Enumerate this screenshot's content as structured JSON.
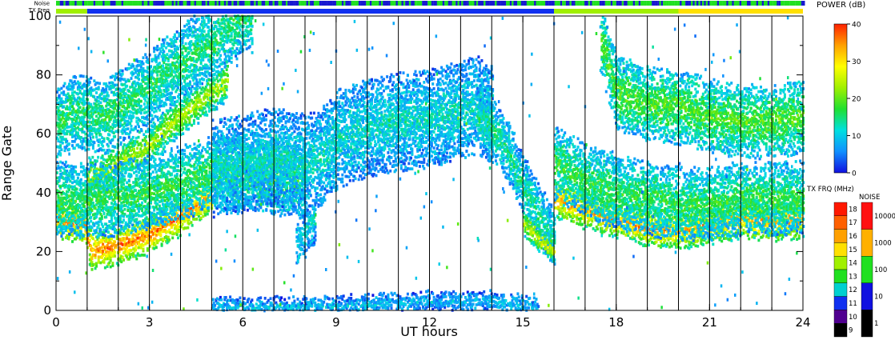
{
  "chart_data": [
    {
      "type": "heatmap",
      "title": "",
      "xlabel": "UT hours",
      "ylabel": "Range Gate",
      "xlim": [
        0,
        24
      ],
      "ylim": [
        0,
        100
      ],
      "x_ticks": [
        0,
        3,
        6,
        9,
        12,
        15,
        18,
        21,
        24
      ],
      "x_tick_labels": [
        "0",
        "3",
        "6",
        "9",
        "12",
        "15",
        "18",
        "21",
        "24"
      ],
      "y_ticks": [
        0,
        20,
        40,
        60,
        80,
        100
      ],
      "y_tick_labels": [
        "0",
        "20",
        "40",
        "60",
        "80",
        "100"
      ],
      "vertical_lines_x": [
        1,
        2,
        3,
        4,
        5,
        6,
        7,
        8,
        9,
        10,
        11,
        12,
        13,
        14,
        15,
        16,
        17,
        18,
        19,
        20,
        21,
        22,
        23
      ],
      "grid": false,
      "bands": [
        {
          "name": "high-range-early",
          "x": [
            0.0,
            0.5,
            1.0,
            1.5,
            2.0,
            2.5,
            3.0,
            3.5,
            4.0,
            4.5,
            5.0,
            5.5,
            6.0,
            6.3
          ],
          "y": [
            63,
            67,
            67,
            65,
            69,
            72,
            76,
            80,
            84,
            88,
            90,
            96,
            100,
            100
          ],
          "width": 12,
          "power": 16
        },
        {
          "name": "upper-diagonal",
          "x": [
            1.0,
            1.5,
            2.0,
            2.5,
            3.0,
            3.5,
            4.0,
            4.5,
            5.0,
            5.5
          ],
          "y": [
            45,
            47,
            50,
            53,
            56,
            62,
            66,
            70,
            74,
            78
          ],
          "width": 6,
          "power": 24
        },
        {
          "name": "main-echo-early",
          "x": [
            0.0,
            0.5,
            0.9,
            1.1,
            1.5,
            2.0,
            2.5,
            3.0,
            3.5,
            4.0,
            4.5,
            5.0
          ],
          "y": [
            31,
            30,
            29,
            20,
            21,
            22,
            24,
            26,
            29,
            32,
            36,
            40
          ],
          "width": 6,
          "power": 36
        },
        {
          "name": "mid-diffuse-1",
          "x": [
            0.0,
            1.0,
            2.0,
            3.0,
            4.0,
            5.0,
            6.0,
            7.0,
            8.0
          ],
          "y": [
            38,
            37,
            38,
            40,
            43,
            47,
            46,
            45,
            44
          ],
          "width": 12,
          "power": 17
        },
        {
          "name": "mid-diffuse-2",
          "x": [
            5.0,
            6.0,
            7.0,
            8.0,
            8.5,
            9.0,
            10.0,
            11.0,
            12.0,
            13.0,
            13.5,
            14.0
          ],
          "y": [
            48,
            50,
            52,
            50,
            52,
            58,
            62,
            64,
            65,
            68,
            70,
            66
          ],
          "width": 16,
          "power": 12
        },
        {
          "name": "plume-14-16",
          "x": [
            13.5,
            14.0,
            14.5,
            15.0,
            15.5,
            16.0
          ],
          "y": [
            66,
            62,
            54,
            42,
            32,
            24
          ],
          "width": 10,
          "power": 14
        },
        {
          "name": "plume-core",
          "x": [
            15.0,
            15.5,
            16.0
          ],
          "y": [
            30,
            24,
            20
          ],
          "width": 4,
          "power": 26
        },
        {
          "name": "patch-8",
          "x": [
            7.7,
            8.0,
            8.3
          ],
          "y": [
            22,
            27,
            30
          ],
          "width": 8,
          "power": 11
        },
        {
          "name": "main-echo-late",
          "x": [
            16.0,
            17.0,
            18.0,
            19.0,
            20.0,
            21.0,
            22.0,
            23.0,
            24.0
          ],
          "y": [
            38,
            34,
            31,
            28,
            27,
            29,
            31,
            30,
            31
          ],
          "width": 6,
          "power": 34
        },
        {
          "name": "mid-late",
          "x": [
            16.0,
            17.0,
            18.0,
            19.0,
            20.0,
            21.0,
            22.0,
            23.0,
            24.0
          ],
          "y": [
            50,
            44,
            40,
            38,
            36,
            36,
            38,
            38,
            38
          ],
          "width": 12,
          "power": 17
        },
        {
          "name": "high-late",
          "x": [
            17.5,
            18.0,
            19.0,
            20.0,
            21.0,
            22.0,
            23.0,
            24.0
          ],
          "y": [
            92,
            74,
            70,
            69,
            66,
            64,
            64,
            66
          ],
          "width": 12,
          "power": 19
        },
        {
          "name": "ground-near",
          "x": [
            5.0,
            8.0,
            10.0,
            12.0,
            14.0,
            15.5
          ],
          "y": [
            1,
            1,
            2,
            3,
            3,
            1
          ],
          "width": 3,
          "power": 9
        }
      ]
    },
    {
      "type": "bar",
      "title": "",
      "categories": [
        "Noise",
        "TX Freq"
      ],
      "segments": [
        {
          "row": "Noise",
          "x_start": 0,
          "x_end": 24,
          "pattern": "mixed",
          "values": [
            "green",
            "blue"
          ]
        },
        {
          "row": "TX Freq",
          "x_start": 0,
          "x_end": 1,
          "value": 14
        },
        {
          "row": "TX Freq",
          "x_start": 1,
          "x_end": 16,
          "value": 11
        },
        {
          "row": "TX Freq",
          "x_start": 16,
          "x_end": 20,
          "value": 14
        },
        {
          "row": "TX Freq",
          "x_start": 20,
          "x_end": 24,
          "value": 15
        }
      ]
    }
  ],
  "labels": {
    "noise_row": "Noise",
    "txfreq_row": "TX Freq",
    "x_axis": "UT hours",
    "y_axis": "Range Gate"
  },
  "power_scale": {
    "title": "POWER (dB)",
    "ticks": [
      "40",
      "30",
      "20",
      "10",
      "0"
    ],
    "min": 0,
    "max": 40,
    "stops": [
      "#1010e0",
      "#1090ff",
      "#00e0e0",
      "#20e030",
      "#a0f000",
      "#ffff00",
      "#ffa000",
      "#ff2000"
    ]
  },
  "txfreq_scale": {
    "title": "TX FRQ (MHz)",
    "levels": [
      "18",
      "17",
      "16",
      "15",
      "14",
      "13",
      "12",
      "11",
      "10",
      "9"
    ],
    "colors": [
      "#ff1800",
      "#ff6000",
      "#ffa000",
      "#ffe000",
      "#a0f000",
      "#20e020",
      "#00d0d0",
      "#1030f0",
      "#500090",
      "#000000"
    ]
  },
  "noise_scale": {
    "title": "NOISE",
    "levels": [
      "10000",
      "1000",
      "100",
      "10",
      "1"
    ],
    "colors": [
      "#ff1010",
      "#ffb000",
      "#20e020",
      "#1010e0",
      "#000000"
    ]
  }
}
